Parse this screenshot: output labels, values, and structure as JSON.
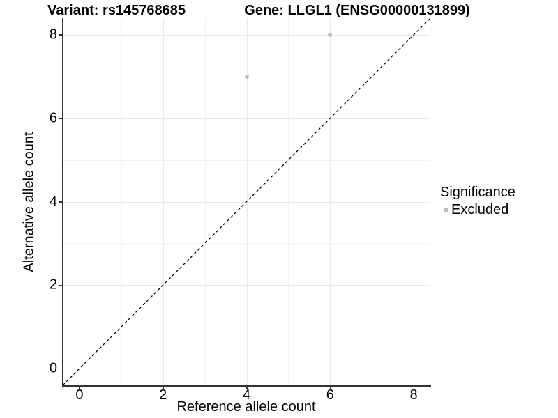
{
  "titles": {
    "variant": "Variant: rs145768685",
    "gene": "Gene: LLGL1 (ENSG00000131899)"
  },
  "chart_data": {
    "type": "scatter",
    "title_left": "Variant: rs145768685",
    "title_right": "Gene: LLGL1 (ENSG00000131899)",
    "xlabel": "Reference allele count",
    "ylabel": "Alternative allele count",
    "xlim": [
      -0.4,
      8.4
    ],
    "ylim": [
      -0.4,
      8.4
    ],
    "x_ticks": [
      0,
      2,
      4,
      6,
      8
    ],
    "y_ticks": [
      0,
      2,
      4,
      6,
      8
    ],
    "x_minor": [
      1,
      3,
      5,
      7
    ],
    "y_minor": [
      1,
      3,
      5,
      7
    ],
    "grid": "major+minor",
    "legend_position": "right",
    "legend_title": "Significance",
    "series": [
      {
        "name": "Excluded",
        "color": "#bdbdbd",
        "points": [
          {
            "x": 4,
            "y": 7
          },
          {
            "x": 6,
            "y": 8
          }
        ]
      }
    ],
    "reference_line": {
      "type": "identity",
      "style": "dashed",
      "color": "#000000"
    }
  },
  "colors": {
    "axis": "#333333",
    "grid_major": "#e9e9e9",
    "grid_minor": "#f3f3f3",
    "point": "#bdbdbd",
    "background": "#ffffff"
  }
}
